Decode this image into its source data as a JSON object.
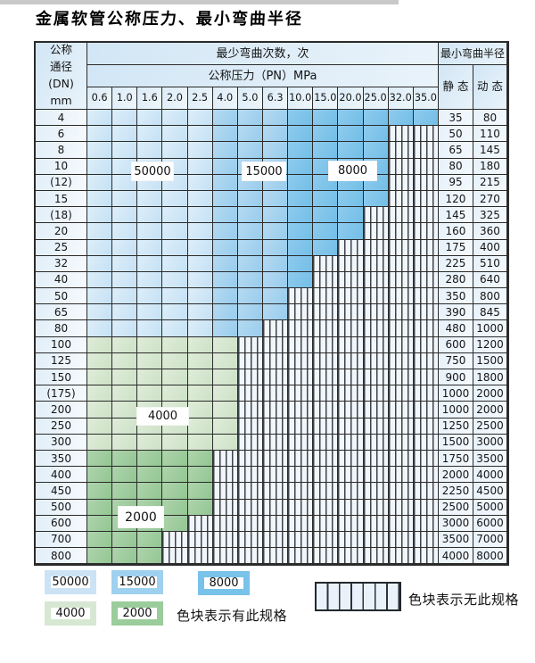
{
  "title": "金属软管公称压力、最小弯曲半径",
  "table": {
    "corner_header_lines": [
      "公称",
      "通径",
      "(DN)",
      "mm"
    ],
    "bend_cycles_header": "最少弯曲次数，次",
    "pressure_header": "公称压力（PN）MPa",
    "radius_header": "最小弯曲半径",
    "static_header": "静 态",
    "dynamic_header": "动 态",
    "pressures": [
      "0.6",
      "1.0",
      "1.6",
      "2.0",
      "2.5",
      "4.0",
      "5.0",
      "6.3",
      "10.0",
      "15.0",
      "20.0",
      "25.0",
      "32.0",
      "35.0"
    ],
    "rows": [
      {
        "dn": "4",
        "scheme": "blue",
        "colored": 14,
        "static": "35",
        "dynamic": "80"
      },
      {
        "dn": "6",
        "scheme": "blue",
        "colored": 12,
        "static": "50",
        "dynamic": "110"
      },
      {
        "dn": "8",
        "scheme": "blue",
        "colored": 12,
        "static": "65",
        "dynamic": "145"
      },
      {
        "dn": "10",
        "scheme": "blue",
        "colored": 12,
        "static": "80",
        "dynamic": "180"
      },
      {
        "dn": "(12)",
        "scheme": "blue",
        "colored": 12,
        "static": "95",
        "dynamic": "215"
      },
      {
        "dn": "15",
        "scheme": "blue",
        "colored": 12,
        "static": "120",
        "dynamic": "270"
      },
      {
        "dn": "(18)",
        "scheme": "blue",
        "colored": 11,
        "static": "145",
        "dynamic": "325"
      },
      {
        "dn": "20",
        "scheme": "blue",
        "colored": 11,
        "static": "160",
        "dynamic": "360"
      },
      {
        "dn": "25",
        "scheme": "blue",
        "colored": 10,
        "static": "175",
        "dynamic": "400"
      },
      {
        "dn": "32",
        "scheme": "blue",
        "colored": 9,
        "static": "225",
        "dynamic": "510"
      },
      {
        "dn": "40",
        "scheme": "blue",
        "colored": 9,
        "static": "280",
        "dynamic": "640"
      },
      {
        "dn": "50",
        "scheme": "blue",
        "colored": 8,
        "static": "350",
        "dynamic": "800"
      },
      {
        "dn": "65",
        "scheme": "blue",
        "colored": 8,
        "static": "390",
        "dynamic": "845"
      },
      {
        "dn": "80",
        "scheme": "blue",
        "colored": 7,
        "static": "480",
        "dynamic": "1000"
      },
      {
        "dn": "100",
        "scheme": "g4",
        "colored": 6,
        "static": "600",
        "dynamic": "1200"
      },
      {
        "dn": "125",
        "scheme": "g4",
        "colored": 6,
        "static": "750",
        "dynamic": "1500"
      },
      {
        "dn": "150",
        "scheme": "g4",
        "colored": 6,
        "static": "900",
        "dynamic": "1800"
      },
      {
        "dn": "(175)",
        "scheme": "g4",
        "colored": 6,
        "static": "1000",
        "dynamic": "2000"
      },
      {
        "dn": "200",
        "scheme": "g4",
        "colored": 6,
        "static": "1000",
        "dynamic": "2000"
      },
      {
        "dn": "250",
        "scheme": "g4",
        "colored": 6,
        "static": "1250",
        "dynamic": "2500"
      },
      {
        "dn": "300",
        "scheme": "g4",
        "colored": 6,
        "static": "1500",
        "dynamic": "3000"
      },
      {
        "dn": "350",
        "scheme": "g2",
        "colored": 5,
        "static": "1750",
        "dynamic": "3500"
      },
      {
        "dn": "400",
        "scheme": "g2",
        "colored": 5,
        "static": "2000",
        "dynamic": "4000"
      },
      {
        "dn": "450",
        "scheme": "g2",
        "colored": 5,
        "static": "2250",
        "dynamic": "4500"
      },
      {
        "dn": "500",
        "scheme": "g2",
        "colored": 5,
        "static": "2500",
        "dynamic": "5000"
      },
      {
        "dn": "600",
        "scheme": "g2",
        "colored": 4,
        "static": "3000",
        "dynamic": "6000"
      },
      {
        "dn": "700",
        "scheme": "g2",
        "colored": 3,
        "static": "3500",
        "dynamic": "7000"
      },
      {
        "dn": "800",
        "scheme": "g2",
        "colored": 3,
        "static": "4000",
        "dynamic": "8000"
      }
    ],
    "band_rules": {
      "blue_light_cols": [
        1,
        2,
        3,
        4,
        5
      ],
      "blue_medium_cols": [
        6,
        7,
        8
      ],
      "blue_dark_cols": [
        9,
        10,
        11,
        12,
        13,
        14
      ],
      "blue_light_cycles": "50000",
      "blue_medium_cycles": "15000",
      "blue_dark_cycles": "8000",
      "g4_cycles": "4000",
      "g2_cycles": "2000"
    }
  },
  "cycle_labels": [
    {
      "text": "50000"
    },
    {
      "text": "15000"
    },
    {
      "text": "8000"
    },
    {
      "text": "4000"
    },
    {
      "text": "2000"
    }
  ],
  "legend": {
    "items": [
      {
        "label": "50000",
        "color": "#cbe3f5"
      },
      {
        "label": "15000",
        "color": "#9fd0ef"
      },
      {
        "label": "8000",
        "color": "#79c2ea"
      },
      {
        "label": "4000",
        "color": "#d6e8d1"
      },
      {
        "label": "2000",
        "color": "#9bcc9b"
      }
    ],
    "available_note": "色块表示有此规格",
    "unavailable_note": "色块表示无此规格"
  },
  "colors": {
    "cycles_50000": "#c5e1f4",
    "cycles_15000": "#98ccec",
    "cycles_8000": "#72bfe7",
    "cycles_4000": "#cde2c7",
    "cycles_2000": "#93c693",
    "no_spec_stripe": "#3c434a",
    "border": "#2b2b2b"
  }
}
